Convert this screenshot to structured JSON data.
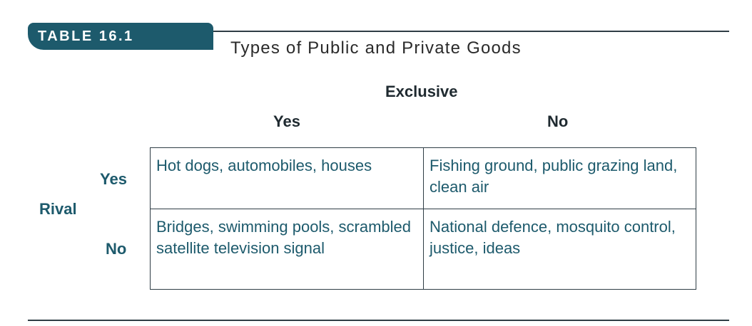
{
  "table": {
    "number_label": "TABLE 16.1",
    "caption": "Types of Public and Private Goods",
    "column_header": "Exclusive",
    "row_header": "Rival",
    "columns": [
      "Yes",
      "No"
    ],
    "rows": [
      "Yes",
      "No"
    ],
    "cells": [
      [
        "Hot dogs, automobiles, houses",
        "Fishing ground, public grazing land, clean air"
      ],
      [
        "Bridges, swimming pools, scrambled satellite television signal",
        "National defence, mosquito control, justice, ideas"
      ]
    ]
  },
  "colors": {
    "accent": "#1d5a6c",
    "rule": "#2f3d45",
    "text": "#1f2a30"
  }
}
